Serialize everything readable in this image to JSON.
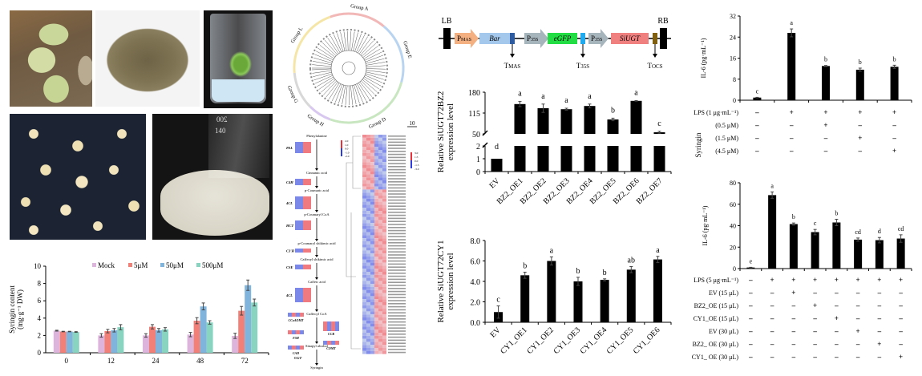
{
  "photos": [
    {
      "name": "plant-leaves-photo",
      "caption": ""
    },
    {
      "name": "seeds-photo",
      "caption": ""
    },
    {
      "name": "tissue-culture-plantlet-photo",
      "caption": ""
    },
    {
      "name": "callus-plate-photo",
      "caption": ""
    },
    {
      "name": "suspension-culture-flask-photo",
      "caption": "",
      "flask_marks": [
        "200",
        "140"
      ]
    }
  ],
  "phylo_tree": {
    "groups": [
      "Group A",
      "Group E",
      "Group D",
      "Group H",
      "Group G",
      "Group L"
    ],
    "scale_label": "10",
    "group_colors": {
      "Group A": "#f2b8b8",
      "Group E": "#b8d4f0",
      "Group D": "#c8e6c0",
      "Group H": "#d8c8f0",
      "Group G": "#d8d8d8",
      "Group L": "#f5e6a8"
    }
  },
  "pathway": {
    "steps": [
      "Phenylalanine",
      "Cinnamic acid",
      "p-Coumaric acid",
      "p-Coumaryl CoA",
      "p-Coumaryl shikimic acid",
      "Caffeoyl shikimic acid",
      "Caffeic acid",
      "Caffeoyl CoA",
      "Sinapyl alcohol",
      "Syringin"
    ],
    "enzymes": [
      "PAL",
      "C4H",
      "4CL",
      "HCT",
      "C3'H",
      "CSE",
      "4CL",
      "CCoAOMT",
      "F5H",
      "CAD",
      "CCR",
      "COMT",
      "UGT"
    ],
    "legend_ticks": [
      "2.0",
      "1.0",
      "0.0",
      "-1.0",
      "-2.0"
    ]
  },
  "heatmap": {
    "legend_ticks": [
      "3.0",
      "1.5",
      "0.0",
      "-1.5",
      "-3.0"
    ],
    "gene_prefix": "EVM"
  },
  "colors": {
    "high": "#e8303a",
    "low": "#2b3de0",
    "bar": "#000000"
  },
  "chart_data": [
    {
      "id": "syringin",
      "type": "bar",
      "title": "",
      "xlabel": "",
      "ylabel": "Syringin content (mg·g⁻¹ DW)",
      "ylabel_line1": "Syringin content",
      "ylabel_line2": "(mg·g⁻¹ DW)",
      "categories": [
        "0",
        "12",
        "24",
        "48",
        "72"
      ],
      "ylim": [
        0,
        10
      ],
      "yticks": [
        "0",
        "2",
        "4",
        "6",
        "8",
        "10"
      ],
      "legend_position": "top",
      "series": [
        {
          "name": "Mock",
          "color": "#dcb4dc",
          "values": [
            2.55,
            2.0,
            2.0,
            2.1,
            1.95
          ],
          "errors": [
            0.05,
            0.2,
            0.2,
            0.25,
            0.3
          ]
        },
        {
          "name": "5μM",
          "color": "#f08078",
          "values": [
            2.45,
            2.5,
            3.0,
            3.7,
            4.85
          ],
          "errors": [
            0.03,
            0.2,
            0.25,
            0.35,
            0.5
          ]
        },
        {
          "name": "50μM",
          "color": "#80b4dc",
          "values": [
            2.45,
            2.6,
            2.6,
            5.35,
            7.8
          ],
          "errors": [
            0.03,
            0.2,
            0.2,
            0.4,
            0.6
          ]
        },
        {
          "name": "500μM",
          "color": "#88d4c0",
          "values": [
            2.4,
            2.95,
            2.7,
            3.5,
            5.8
          ],
          "errors": [
            0.04,
            0.3,
            0.2,
            0.2,
            0.4
          ]
        }
      ]
    },
    {
      "id": "construct",
      "type": "diagram",
      "labels": {
        "LB": "LB",
        "RB": "RB",
        "pmas": "P",
        "pmas_sub": "MAS",
        "bar": "Bar",
        "tmas": "T",
        "tmas_sub": "MAS",
        "p35s_1": "P",
        "p35s_1_sub": "35S",
        "egfp": "eGFP",
        "t35s": "T",
        "t35s_sub": "35S",
        "p35s_2": "P",
        "p35s_2_sub": "35S",
        "siugt": "SiUGT",
        "tocs": "T",
        "tocs_sub": "OCS"
      }
    },
    {
      "id": "bz2",
      "type": "bar",
      "title": "",
      "ylabel_line1": "Relative SiUGT72BZ2",
      "ylabel_line2": "expression level",
      "categories": [
        "EV",
        "BZ2_OE1",
        "BZ2_OE2",
        "BZ2_OE3",
        "BZ2_OE4",
        "BZ2_OE5",
        "BZ2_OE6",
        "BZ2_OE7"
      ],
      "values": [
        1.0,
        143,
        130,
        127,
        137,
        95,
        153,
        55
      ],
      "errors": [
        0.02,
        8,
        13,
        3,
        6,
        4,
        1,
        3
      ],
      "significance": [
        "d",
        "a",
        "a",
        "a",
        "a",
        "b",
        "a",
        "c"
      ],
      "axis_break": true,
      "lower_ylim": [
        0,
        2
      ],
      "upper_ylim": [
        50,
        180
      ],
      "lower_yticks": [
        "0",
        "1",
        "2"
      ],
      "upper_yticks": [
        "50",
        "115",
        "180"
      ]
    },
    {
      "id": "cy1",
      "type": "bar",
      "title": "",
      "ylabel_line1": "Relative SiUGT72CY1",
      "ylabel_line2": "expression level",
      "categories": [
        "EV",
        "CY1_OE1",
        "CY1_OE2",
        "CY1_OE3",
        "CY1_OE4",
        "CY1_OE5",
        "CY1_OE6"
      ],
      "values": [
        1.0,
        4.6,
        6.0,
        4.0,
        4.15,
        5.15,
        6.15
      ],
      "errors": [
        0.6,
        0.3,
        0.4,
        0.4,
        0.1,
        0.3,
        0.3
      ],
      "significance": [
        "c",
        "b",
        "a",
        "b",
        "b",
        "ab",
        "a"
      ],
      "ylim": [
        0,
        8
      ],
      "yticks": [
        "0.0",
        "2.0",
        "4.0",
        "6.0",
        "8.0"
      ]
    },
    {
      "id": "il6_syringin",
      "type": "bar",
      "ylabel": "IL-6 (pg·mL⁻¹)",
      "values": [
        1.0,
        25.6,
        13.0,
        11.6,
        12.7
      ],
      "errors": [
        0.1,
        1.5,
        0.2,
        0.6,
        0.6
      ],
      "significance": [
        "c",
        "a",
        "b",
        "b",
        "b"
      ],
      "ylim": [
        0,
        32
      ],
      "yticks": [
        "0",
        "8",
        "16",
        "24",
        "32"
      ],
      "treatment_group_label": "Syringin",
      "treatments": [
        {
          "label": "LPS (1 μg·mL⁻¹)",
          "signs": [
            "-",
            "+",
            "+",
            "+",
            "+"
          ]
        },
        {
          "label": "(0.5 μM)",
          "signs": [
            "-",
            "-",
            "+",
            "-",
            "-"
          ]
        },
        {
          "label": "(1.5 μM)",
          "signs": [
            "-",
            "-",
            "-",
            "+",
            "-"
          ]
        },
        {
          "label": "(4.5 μM)",
          "signs": [
            "-",
            "-",
            "-",
            "-",
            "+"
          ]
        }
      ]
    },
    {
      "id": "il6_ev",
      "type": "bar",
      "ylabel": "IL-6 (pg·mL⁻¹)",
      "values": [
        1.0,
        68.5,
        41.5,
        34.0,
        43.0,
        27.0,
        26.5,
        28.0
      ],
      "errors": [
        0.2,
        3.0,
        1.0,
        2.5,
        3.0,
        1.5,
        2.5,
        3.5
      ],
      "significance": [
        "e",
        "a",
        "b",
        "c",
        "b",
        "cd",
        "d",
        "cd"
      ],
      "ylim": [
        0,
        80
      ],
      "yticks": [
        "0",
        "20",
        "40",
        "60",
        "80"
      ],
      "treatments": [
        {
          "label": "LPS (5 μg·mL⁻¹)",
          "signs": [
            "-",
            "+",
            "+",
            "+",
            "+",
            "+",
            "+",
            "+"
          ]
        },
        {
          "label": "EV (15 μL)",
          "signs": [
            "-",
            "-",
            "+",
            "-",
            "-",
            "-",
            "-",
            "-"
          ]
        },
        {
          "label": "BZ2_OE (15 μL)",
          "signs": [
            "-",
            "-",
            "-",
            "+",
            "-",
            "-",
            "-",
            "-"
          ]
        },
        {
          "label": "CY1_OE (15 μL)",
          "signs": [
            "-",
            "-",
            "-",
            "-",
            "+",
            "-",
            "-",
            "-"
          ]
        },
        {
          "label": "EV (30 μL)",
          "signs": [
            "-",
            "-",
            "-",
            "-",
            "-",
            "+",
            "-",
            "-"
          ]
        },
        {
          "label": "BZ2_ OE (30 μL)",
          "signs": [
            "-",
            "-",
            "-",
            "-",
            "-",
            "-",
            "+",
            "-"
          ]
        },
        {
          "label": "CY1_ OE (30 μL)",
          "signs": [
            "-",
            "-",
            "-",
            "-",
            "-",
            "-",
            "-",
            "+"
          ]
        }
      ]
    }
  ]
}
